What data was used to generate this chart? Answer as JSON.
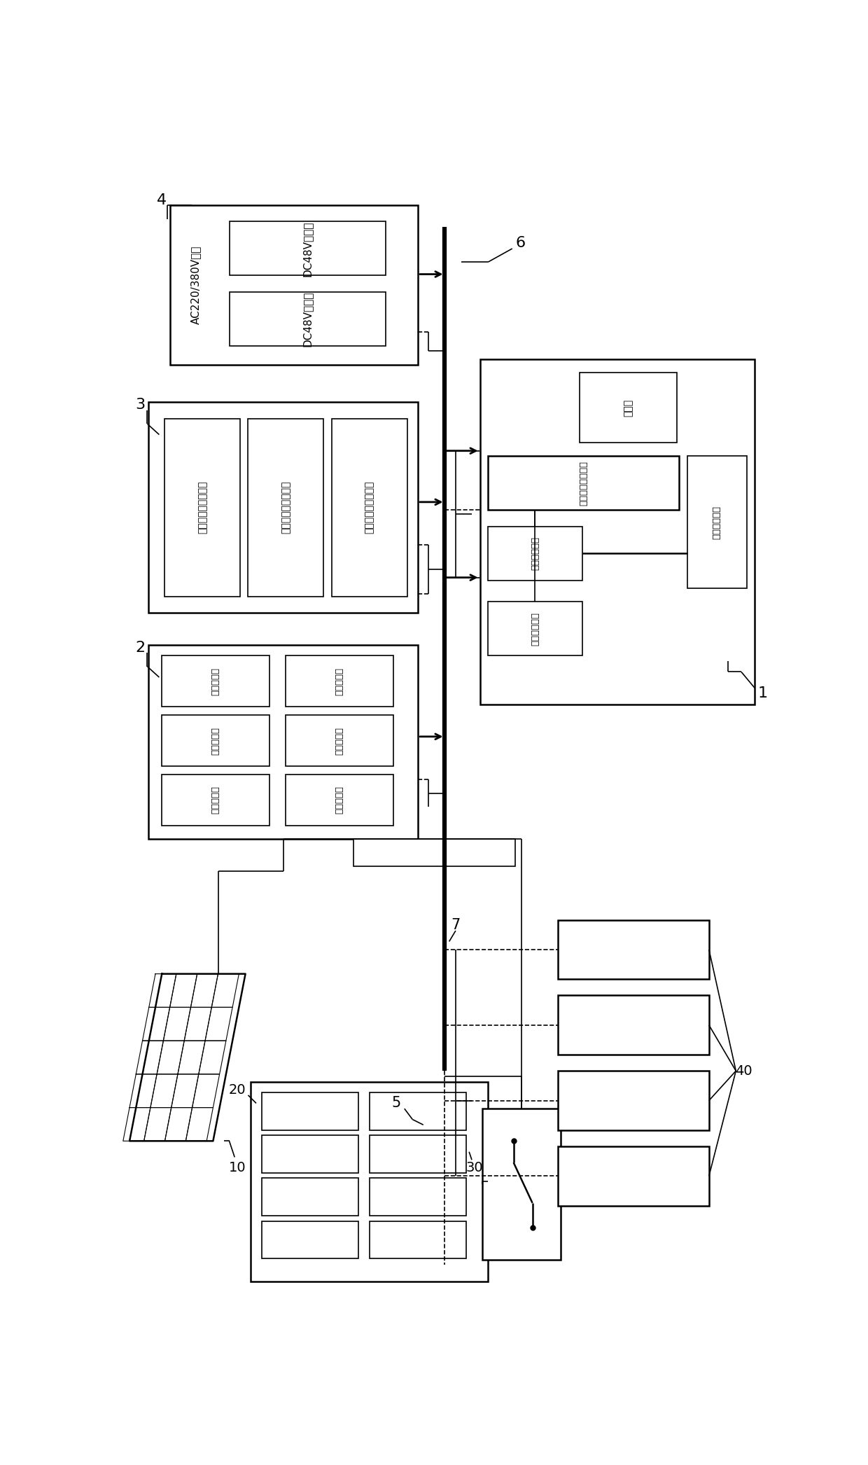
{
  "fig_width": 12.4,
  "fig_height": 20.92,
  "bg_color": "#ffffff",
  "lw_thin": 1.2,
  "lw_mid": 1.8,
  "lw_bus": 4.5,
  "lw_arrow": 2.0,
  "labels": {
    "ac_input": "AC220/380V接入",
    "dc48_1": "DC48V整流器",
    "dc48_2": "DC48V整流器",
    "wind1": "风力发电机组控制器",
    "wind2": "风力发电机组控制器",
    "wind3": "风力发电机组控制器",
    "pv1": "光伏控制器",
    "pv2": "光伏控制器",
    "pv3": "光伏控制器",
    "pv4": "光伏控制器",
    "pv5": "光伏控制器",
    "pv6": "光伏控制器",
    "comm": "通信规约转换模块",
    "data": "数据采集模块",
    "storage": "本地存储模块",
    "remote": "远端通讯接口",
    "display": "显示屏",
    "n1": "1",
    "n2": "2",
    "n3": "3",
    "n4": "4",
    "n5": "5",
    "n6": "6",
    "n7": "7",
    "n10": "10",
    "n20": "20",
    "n30": "30",
    "n40": "40"
  }
}
